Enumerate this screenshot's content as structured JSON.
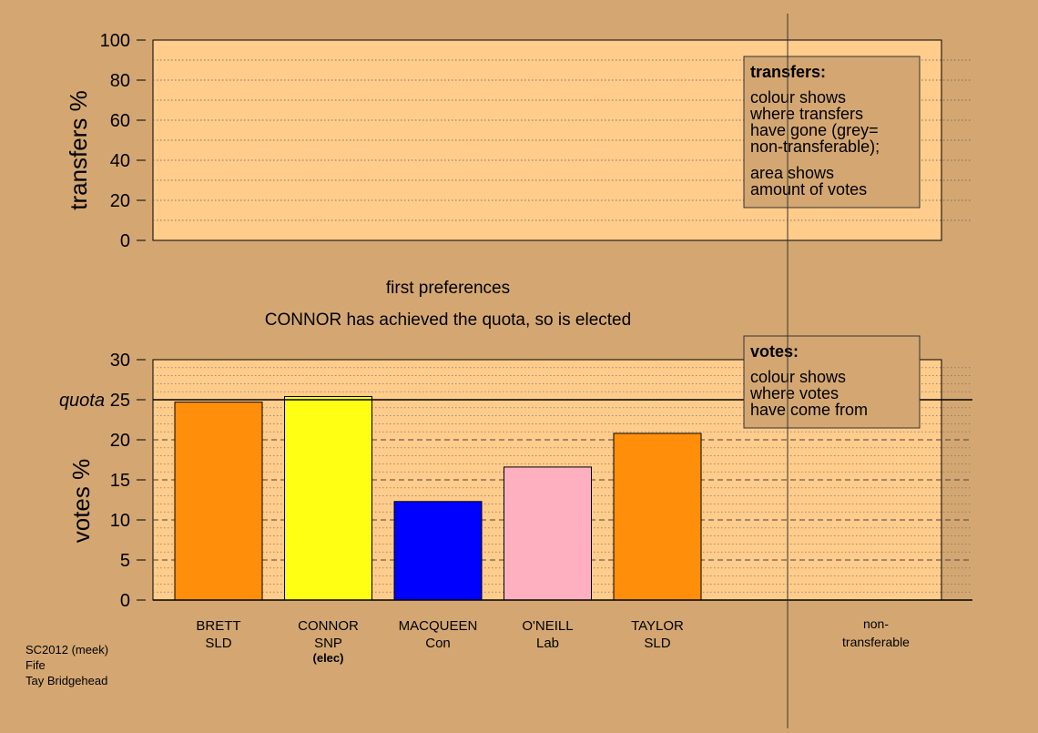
{
  "top_panel": {
    "ylabel": "transfers %",
    "yticks": [
      "0",
      "20",
      "40",
      "60",
      "80",
      "100"
    ],
    "legend": {
      "title": "transfers:",
      "lines1": [
        "colour shows",
        "where transfers",
        "have gone (grey=",
        "non-transferable);"
      ],
      "lines2": [
        "area shows",
        "amount of votes"
      ]
    }
  },
  "stage": {
    "title": "first preferences",
    "subtitle": "CONNOR has achieved the quota, so is elected"
  },
  "bottom_panel": {
    "ylabel": "votes %",
    "quota_label": "quota",
    "yticks": [
      "0",
      "5",
      "10",
      "15",
      "20",
      "25",
      "30"
    ],
    "legend": {
      "title": "votes:",
      "lines": [
        "colour shows",
        "where votes",
        "have come from"
      ]
    }
  },
  "nontransferable_label": [
    "non-",
    "transferable"
  ],
  "footer": {
    "lines": [
      "SC2012 (meek)",
      "Fife",
      "Tay Bridgehead"
    ]
  },
  "colors": {
    "background": "#d4a772",
    "plot_area": "#ffcc8c",
    "SLD": "#ff8f0a",
    "SNP": "#ffff14",
    "Con": "#0000ff",
    "Lab": "#ffb0c0"
  },
  "chart_data": [
    {
      "type": "bar",
      "panel": "transfers",
      "ylabel": "transfers %",
      "ylim": [
        0,
        100
      ],
      "grid": true,
      "series": []
    },
    {
      "type": "bar",
      "panel": "votes",
      "title": "first preferences",
      "subtitle": "CONNOR has achieved the quota, so is elected",
      "ylabel": "votes %",
      "ylim": [
        0,
        30
      ],
      "quota": 25,
      "grid": true,
      "legend_position": "top-right",
      "categories": [
        "BRETT",
        "CONNOR",
        "MACQUEEN",
        "O'NEILL",
        "TAYLOR"
      ],
      "parties": [
        "SLD",
        "SNP",
        "Con",
        "Lab",
        "SLD"
      ],
      "notes": [
        "",
        "(elec)",
        "",
        "",
        ""
      ],
      "values": [
        24.7,
        25.4,
        12.3,
        16.6,
        20.8
      ],
      "bar_colors": [
        "#ff8f0a",
        "#ffff14",
        "#0000ff",
        "#ffb0c0",
        "#ff8f0a"
      ]
    }
  ]
}
